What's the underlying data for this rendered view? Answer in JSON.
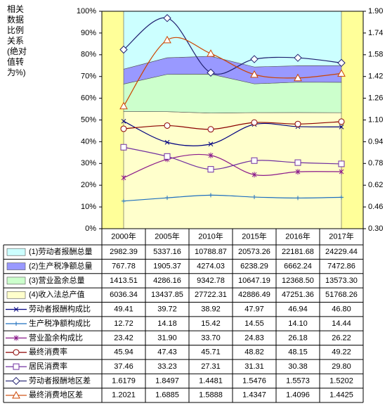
{
  "chart_data": {
    "type": "combo",
    "ylabel": [
      "相关",
      "数据",
      "比例",
      "关系",
      "(绝对",
      "值转",
      "为%)"
    ],
    "categories": [
      "2000年",
      "2005年",
      "2010年",
      "2015年",
      "2016年",
      "2017年"
    ],
    "ylim": [
      0,
      100
    ],
    "yticks": [
      {
        "value": 0,
        "label": "0%"
      },
      {
        "value": 10,
        "label": "10%"
      },
      {
        "value": 20,
        "label": "20%"
      },
      {
        "value": 30,
        "label": "30%"
      },
      {
        "value": 40,
        "label": "40%"
      },
      {
        "value": 50,
        "label": "50%"
      },
      {
        "value": 60,
        "label": "60%"
      },
      {
        "value": 70,
        "label": "70%"
      },
      {
        "value": 80,
        "label": "80%"
      },
      {
        "value": 90,
        "label": "90%"
      },
      {
        "value": 100,
        "label": "100%"
      }
    ],
    "y2lim": [
      0.3,
      1.9
    ],
    "y2ticks": [
      {
        "value": 0.3,
        "label": "0.30"
      },
      0.46,
      0.62,
      0.78,
      0.94,
      {
        "value": 1.1,
        "label": "1.10"
      },
      1.26,
      1.42,
      1.58,
      1.74,
      {
        "value": 1.9,
        "label": "1.90"
      }
    ],
    "background": "#FFFF99",
    "series": [
      {
        "name": "(1)劳动者报酬总量",
        "type": "area",
        "color": "#CCFFFF",
        "values": [
          2982.39,
          5337.16,
          10788.87,
          20573.26,
          22181.68,
          24229.44
        ],
        "value_labels": [
          "2982.39",
          "5337.16",
          "10788.87",
          "20573.26",
          "22181.68",
          "24229.44"
        ]
      },
      {
        "name": "(2)生产税净额总量",
        "type": "area",
        "color": "#9999FF",
        "values": [
          767.78,
          1905.37,
          4274.03,
          6238.29,
          6662.24,
          7472.86
        ],
        "value_labels": [
          "767.78",
          "1905.37",
          "4274.03",
          "6238.29",
          "6662.24",
          "7472.86"
        ]
      },
      {
        "name": "(3)营业盈余总量",
        "type": "area",
        "color": "#CCFFCC",
        "values": [
          1413.51,
          4286.16,
          9342.78,
          10647.19,
          12368.5,
          13573.3
        ],
        "value_labels": [
          "1413.51",
          "4286.16",
          "9342.78",
          "10647.19",
          "12368.50",
          "13573.30"
        ]
      },
      {
        "name": "(4)收入法总产值",
        "type": "area",
        "color": "#FFFFCC",
        "values": [
          6036.34,
          13437.85,
          27722.31,
          42886.49,
          47251.36,
          51768.26
        ],
        "value_labels": [
          "6036.34",
          "13437.85",
          "27722.31",
          "42886.49",
          "47251.36",
          "51768.26"
        ]
      },
      {
        "name": "劳动者报酬构成比",
        "type": "line",
        "marker": "x",
        "color": "#000080",
        "values": [
          49.41,
          39.72,
          38.92,
          47.97,
          46.94,
          46.8
        ],
        "value_labels": [
          "49.41",
          "39.72",
          "38.92",
          "47.97",
          "46.94",
          "46.80"
        ]
      },
      {
        "name": "生产税净额构成比",
        "type": "line",
        "marker": "plus",
        "color": "#1F6FBF",
        "values": [
          12.72,
          14.18,
          15.42,
          14.55,
          14.1,
          14.44
        ],
        "value_labels": [
          "12.72",
          "14.18",
          "15.42",
          "14.55",
          "14.10",
          "14.44"
        ]
      },
      {
        "name": "营业盈余构成比",
        "type": "line",
        "marker": "star",
        "color": "#8B1A8B",
        "values": [
          23.42,
          31.9,
          33.7,
          24.83,
          26.18,
          26.22
        ],
        "value_labels": [
          "23.42",
          "31.90",
          "33.70",
          "24.83",
          "26.18",
          "26.22"
        ]
      },
      {
        "name": "最终消费率",
        "type": "line",
        "marker": "circle",
        "color": "#8B0000",
        "values": [
          45.94,
          47.43,
          45.71,
          48.82,
          48.15,
          49.22
        ],
        "value_labels": [
          "45.94",
          "47.43",
          "45.71",
          "48.82",
          "48.15",
          "49.22"
        ]
      },
      {
        "name": "居民消费率",
        "type": "line",
        "marker": "square",
        "color": "#7030A0",
        "values": [
          37.46,
          33.23,
          27.31,
          31.31,
          30.38,
          29.8
        ],
        "value_labels": [
          "37.46",
          "33.23",
          "27.31",
          "31.31",
          "30.38",
          "29.80"
        ]
      },
      {
        "name": "劳动者报酬地区差",
        "type": "line",
        "marker": "diamond",
        "axis": "y2",
        "color": "#1F1F6F",
        "values": [
          1.6179,
          1.8497,
          1.4481,
          1.5476,
          1.5573,
          1.5202
        ],
        "value_labels": [
          "1.6179",
          "1.8497",
          "1.4481",
          "1.5476",
          "1.5573",
          "1.5202"
        ]
      },
      {
        "name": "最终消费地区差",
        "type": "line",
        "marker": "triangle",
        "axis": "y2",
        "color": "#CC4400",
        "values": [
          1.2021,
          1.6885,
          1.5888,
          1.4347,
          1.4096,
          1.4425
        ],
        "value_labels": [
          "1.2021",
          "1.6885",
          "1.5888",
          "1.4347",
          "1.4096",
          "1.4425"
        ]
      }
    ]
  }
}
